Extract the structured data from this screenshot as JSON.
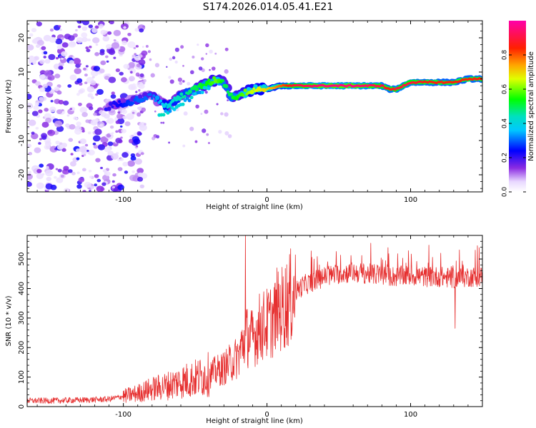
{
  "chart_data": [
    {
      "type": "heatmap",
      "title": "S174.2026.014.05.41.E21",
      "xlabel": "Height of straight line (km)",
      "ylabel": "Frequency (Hz)",
      "xlim": [
        -167,
        150
      ],
      "ylim": [
        -25,
        25
      ],
      "xticks": [
        -100,
        0,
        100
      ],
      "yticks": [
        -20,
        -10,
        0,
        10,
        20
      ],
      "colorbar": {
        "label": "Normalized spectral amplitude",
        "range": [
          0,
          1
        ],
        "ticks": [
          "0.0",
          "0.2",
          "0.4",
          "0.6",
          "0.8"
        ],
        "tick_values": [
          0.0,
          0.2,
          0.4,
          0.6,
          0.8
        ]
      },
      "ridge_frequency": {
        "height_km": [
          -110,
          -100,
          -90,
          -80,
          -70,
          -60,
          -50,
          -40,
          -35,
          -30,
          -25,
          -20,
          -15,
          -10,
          0,
          10,
          20,
          40,
          60,
          80,
          85,
          90,
          95,
          100,
          110,
          120,
          130,
          140,
          150
        ],
        "frequency_hz": [
          0,
          1,
          2,
          3,
          0,
          3,
          5,
          7,
          8,
          7,
          3,
          3,
          4,
          5,
          5,
          6,
          6,
          6,
          6,
          6,
          5,
          5,
          6,
          7,
          7,
          7,
          7,
          8,
          8
        ],
        "amplitude": [
          0.2,
          0.25,
          0.3,
          0.3,
          0.4,
          0.45,
          0.5,
          0.55,
          0.6,
          0.5,
          0.5,
          0.55,
          0.6,
          0.65,
          0.7,
          0.8,
          0.9,
          0.95,
          0.95,
          0.9,
          0.85,
          0.9,
          0.9,
          0.9,
          0.85,
          0.85,
          0.85,
          0.85,
          0.85
        ]
      },
      "noise_region_km": [
        -167,
        -85
      ]
    },
    {
      "type": "line",
      "title": "",
      "xlabel": "Height of straight line (km)",
      "ylabel": "SNR (10 * v/v)",
      "xlim": [
        -167,
        150
      ],
      "ylim": [
        0,
        580
      ],
      "xticks": [
        -100,
        0,
        100
      ],
      "yticks": [
        0,
        100,
        200,
        300,
        400,
        500
      ],
      "series": [
        {
          "name": "SNR",
          "color": "#e63030",
          "x": [
            -167,
            -150,
            -130,
            -110,
            -100,
            -90,
            -80,
            -70,
            -60,
            -50,
            -40,
            -30,
            -20,
            -15,
            -10,
            -5,
            0,
            5,
            10,
            15,
            20,
            25,
            30,
            40,
            50,
            60,
            70,
            80,
            90,
            100,
            110,
            120,
            130,
            140,
            150
          ],
          "y": [
            20,
            20,
            22,
            25,
            35,
            45,
            60,
            70,
            85,
            95,
            110,
            130,
            170,
            240,
            230,
            270,
            280,
            300,
            330,
            360,
            390,
            410,
            420,
            440,
            450,
            455,
            450,
            445,
            440,
            445,
            440,
            440,
            435,
            440,
            440
          ]
        }
      ],
      "spikes": [
        {
          "x": -15,
          "y": 580
        },
        {
          "x": 7,
          "y": 470
        },
        {
          "x": 131,
          "y": 265
        },
        {
          "x": 145,
          "y": 530
        }
      ]
    }
  ]
}
